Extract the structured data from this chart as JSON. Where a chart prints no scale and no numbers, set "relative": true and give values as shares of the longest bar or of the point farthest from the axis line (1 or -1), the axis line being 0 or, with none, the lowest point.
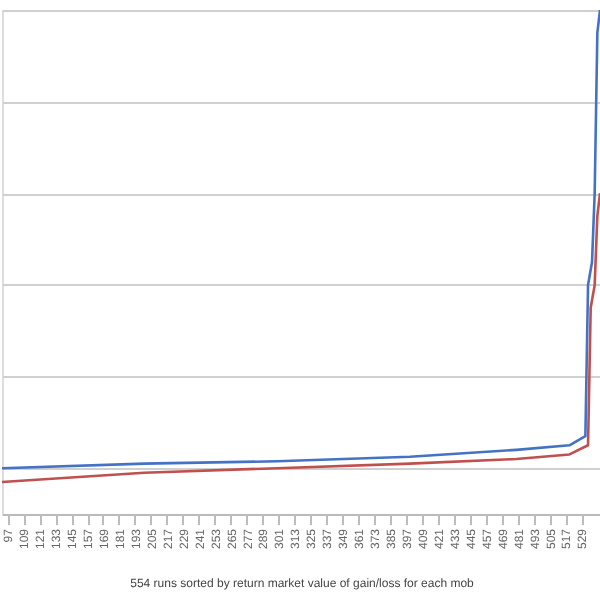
{
  "chart_data": {
    "type": "line",
    "xlabel": "554 runs sorted by return  market value of gain/loss for each mob",
    "relative": true,
    "grid": "y",
    "legend": false,
    "marker": "none",
    "line_style": "solid",
    "xlim": [
      93,
      543
    ],
    "xticks": [
      97,
      109,
      121,
      133,
      145,
      157,
      169,
      181,
      193,
      205,
      217,
      229,
      241,
      253,
      265,
      277,
      289,
      301,
      313,
      325,
      337,
      349,
      361,
      373,
      385,
      397,
      409,
      421,
      433,
      445,
      457,
      469,
      481,
      493,
      505,
      517,
      529
    ],
    "series": [
      {
        "color": "#4472c4",
        "x": [
          93,
          200,
          300,
          400,
          480,
          520,
          532,
          534,
          537,
          539,
          541,
          543
        ],
        "values": [
          0,
          0.01,
          0.015,
          0.025,
          0.04,
          0.05,
          0.07,
          0.4,
          0.45,
          0.6,
          0.95,
          1.0
        ]
      },
      {
        "color": "#c0504d",
        "x": [
          93,
          200,
          300,
          400,
          480,
          520,
          534,
          536,
          539,
          541,
          543
        ],
        "values": [
          -0.03,
          -0.01,
          0,
          0.01,
          0.02,
          0.03,
          0.05,
          0.35,
          0.4,
          0.55,
          0.6
        ]
      }
    ]
  }
}
